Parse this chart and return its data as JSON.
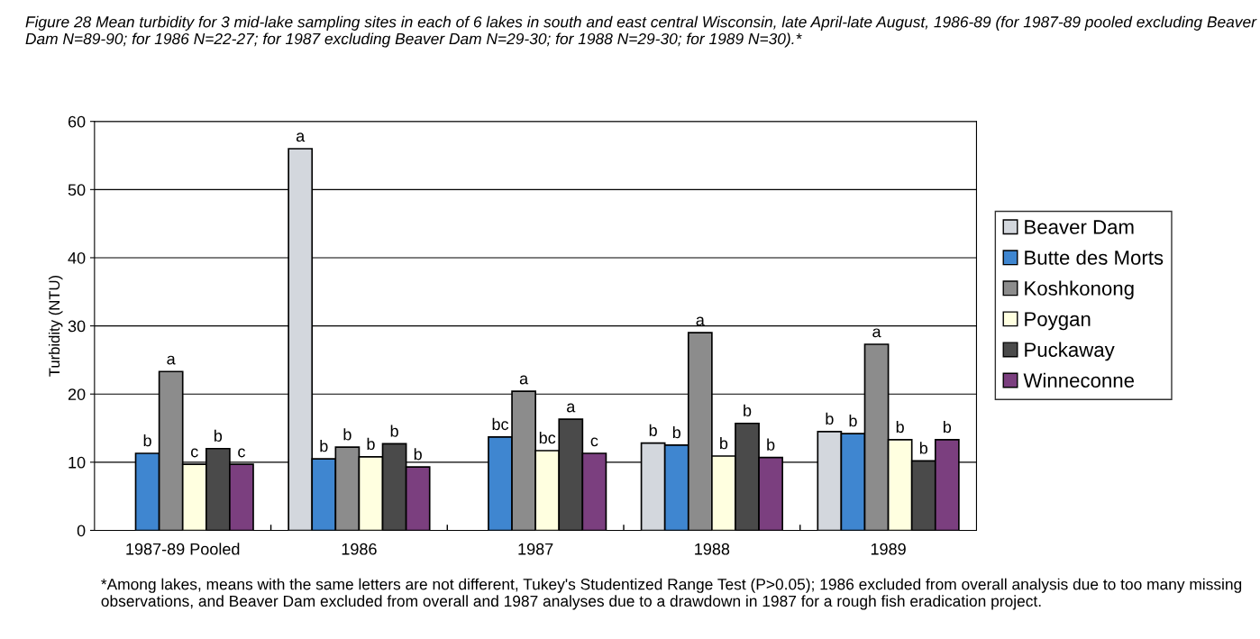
{
  "chart_data": {
    "type": "bar",
    "title": "Figure 28 Mean turbidity for 3 mid-lake sampling sites in each of 6 lakes in south and east central Wisconsin, late April-late August, 1986-89 (for 1987-89 pooled excluding Beaver Dam N=89-90; for 1986 N=22-27; for 1987 excluding Beaver Dam N=29-30; for 1988 N=29-30; for 1989 N=30).*",
    "ylabel": "Turbidity (NTU)",
    "categories": [
      "1987-89 Pooled",
      "1986",
      "1987",
      "1988",
      "1989"
    ],
    "series": [
      {
        "name": "Beaver Dam",
        "color": "#d3d7dd",
        "values": [
          null,
          56.0,
          null,
          12.8,
          14.5
        ],
        "value_labels": [
          null,
          "a",
          null,
          "b",
          "b"
        ]
      },
      {
        "name": "Butte des Morts",
        "color": "#3f86d0",
        "values": [
          11.3,
          10.5,
          13.7,
          12.5,
          14.2
        ],
        "value_labels": [
          "b",
          "b",
          "bc",
          "b",
          "b"
        ]
      },
      {
        "name": "Koshkonong",
        "color": "#8c8c8c",
        "values": [
          23.3,
          12.2,
          20.4,
          29.0,
          27.3
        ],
        "value_labels": [
          "a",
          "b",
          "a",
          "a",
          "a"
        ]
      },
      {
        "name": "Poygan",
        "color": "#ffffe0",
        "values": [
          9.7,
          10.8,
          11.7,
          10.9,
          13.3
        ],
        "value_labels": [
          "c",
          "b",
          "bc",
          "b",
          "b"
        ]
      },
      {
        "name": "Puckaway",
        "color": "#4a4a4a",
        "values": [
          12.0,
          12.7,
          16.3,
          15.7,
          10.2
        ],
        "value_labels": [
          "b",
          "b",
          "a",
          "b",
          "b"
        ]
      },
      {
        "name": "Winneconne",
        "color": "#7b3f7f",
        "values": [
          9.7,
          9.3,
          11.3,
          10.7,
          13.3
        ],
        "value_labels": [
          "c",
          "b",
          "c",
          "b",
          "b"
        ]
      }
    ],
    "ylim": [
      0,
      60
    ],
    "yticks": [
      0,
      10,
      20,
      30,
      40,
      50,
      60
    ],
    "grid": "y",
    "legend": "right",
    "annotations": [
      "*Among lakes, means with the same letters are not different, Tukey's Studentized Range Test (P>0.05); 1986 excluded from overall analysis due to too many missing observations, and Beaver Dam excluded from overall and 1987 analyses due to a drawdown in 1987 for a rough fish eradication project."
    ]
  }
}
